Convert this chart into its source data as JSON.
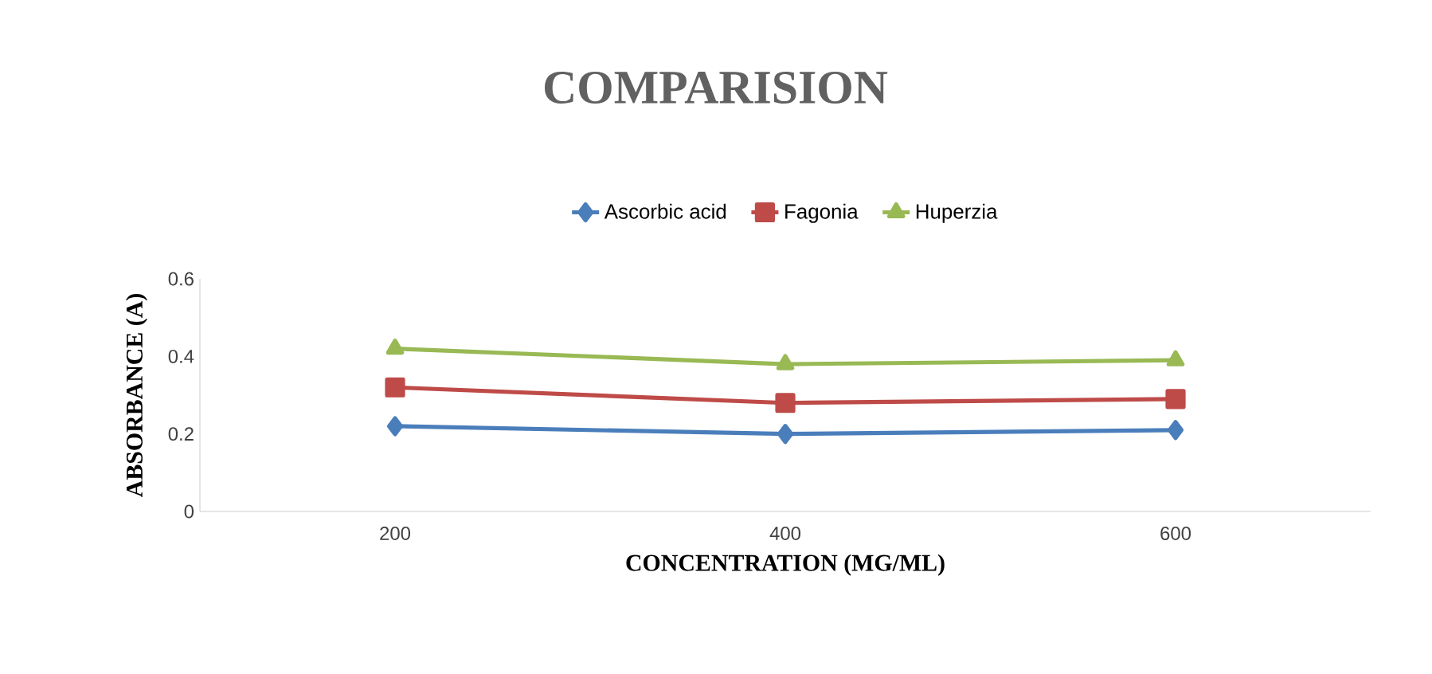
{
  "chart_data": {
    "type": "line",
    "title": "COMPARISION",
    "xlabel": "CONCENTRATION (MG/ML)",
    "ylabel": "ABSORBANCE (A)",
    "categories": [
      "200",
      "400",
      "600"
    ],
    "series": [
      {
        "name": "Ascorbic acid",
        "color": "#4a7ebb",
        "marker": "diamond",
        "values": [
          0.22,
          0.2,
          0.21
        ]
      },
      {
        "name": "Fagonia",
        "color": "#be4b48",
        "marker": "square",
        "values": [
          0.32,
          0.28,
          0.29
        ]
      },
      {
        "name": "Huperzia",
        "color": "#98b954",
        "marker": "triangle",
        "values": [
          0.42,
          0.38,
          0.39
        ]
      }
    ],
    "ylim": [
      0,
      0.6
    ],
    "yticks": [
      {
        "value": 0,
        "label": "0"
      },
      0.2,
      0.4,
      0.6
    ],
    "grid": false,
    "legend": "top",
    "line_style": "solid"
  }
}
